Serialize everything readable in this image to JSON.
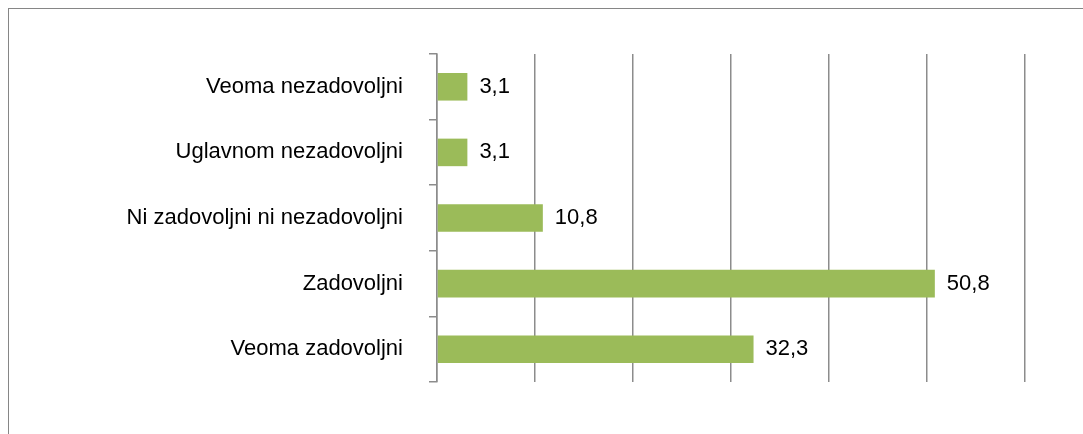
{
  "chart_data": {
    "type": "bar",
    "orientation": "horizontal",
    "categories": [
      "Veoma nezadovoljni",
      "Uglavnom nezadovoljni",
      "Ni zadovoljni ni nezadovoljni",
      "Zadovoljni",
      "Veoma zadovoljni"
    ],
    "values": [
      3.1,
      3.1,
      10.8,
      50.8,
      32.3
    ],
    "color": "#9bbb59",
    "value_labels": [
      "3,1",
      "3,1",
      "10,8",
      "50,8",
      "32,3"
    ],
    "xlim": [
      0,
      60
    ],
    "xticks": [
      {
        "value": 0,
        "label": null
      },
      {
        "value": 10,
        "label": null
      },
      {
        "value": 20,
        "label": null
      },
      {
        "value": 30,
        "label": null
      },
      {
        "value": 40,
        "label": null
      },
      {
        "value": 50,
        "label": null
      },
      {
        "value": 60,
        "label": null
      }
    ],
    "grid": "x",
    "tick_labels": "y"
  }
}
